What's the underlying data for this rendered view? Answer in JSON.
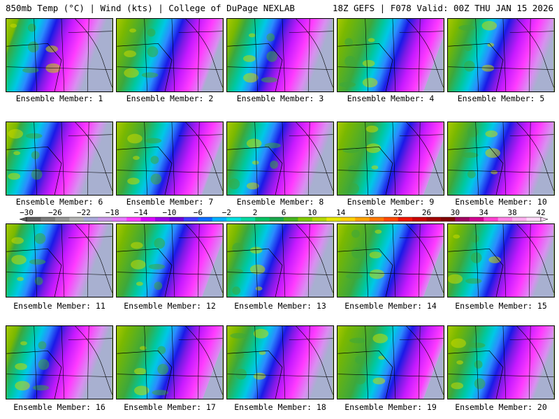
{
  "header": {
    "left": "850mb Temp (°C) | Wind (kts) | College of DuPage NEXLAB",
    "right": "18Z GEFS | F078 Valid: 00Z THU JAN 15 2026"
  },
  "members": [
    {
      "label": "Ensemble Member: 1"
    },
    {
      "label": "Ensemble Member: 2"
    },
    {
      "label": "Ensemble Member: 3"
    },
    {
      "label": "Ensemble Member: 4"
    },
    {
      "label": "Ensemble Member: 5"
    },
    {
      "label": "Ensemble Member: 6"
    },
    {
      "label": "Ensemble Member: 7"
    },
    {
      "label": "Ensemble Member: 8"
    },
    {
      "label": "Ensemble Member: 9"
    },
    {
      "label": "Ensemble Member: 10"
    },
    {
      "label": "Ensemble Member: 11"
    },
    {
      "label": "Ensemble Member: 12"
    },
    {
      "label": "Ensemble Member: 13"
    },
    {
      "label": "Ensemble Member: 14"
    },
    {
      "label": "Ensemble Member: 15"
    },
    {
      "label": "Ensemble Member: 16"
    },
    {
      "label": "Ensemble Member: 17"
    },
    {
      "label": "Ensemble Member: 18"
    },
    {
      "label": "Ensemble Member: 19"
    },
    {
      "label": "Ensemble Member: 20"
    }
  ],
  "colorbar": {
    "labels": [
      "−30",
      "−26",
      "−22",
      "−18",
      "−14",
      "−10",
      "−6",
      "−2",
      "2",
      "6",
      "10",
      "14",
      "18",
      "22",
      "26",
      "30",
      "34",
      "38",
      "42"
    ],
    "colors": [
      "#5c5c5c",
      "#7a7a7a",
      "#959595",
      "#b2b2b2",
      "#a8a8d8",
      "#c896e6",
      "#e678ff",
      "#ff3cff",
      "#d800ff",
      "#9a00e6",
      "#6c00d8",
      "#3c3cff",
      "#0a6aff",
      "#00b0ff",
      "#00dede",
      "#00d8a0",
      "#00c060",
      "#1aa64a",
      "#45b41e",
      "#80c800",
      "#b4d800",
      "#e6e600",
      "#ffd000",
      "#ffa200",
      "#ff7800",
      "#ff4800",
      "#ee1400",
      "#c80000",
      "#a00000",
      "#800000",
      "#a00060",
      "#d00090",
      "#ff40d0",
      "#ff80e6",
      "#ffb0f0",
      "#ffd8f8"
    ]
  }
}
